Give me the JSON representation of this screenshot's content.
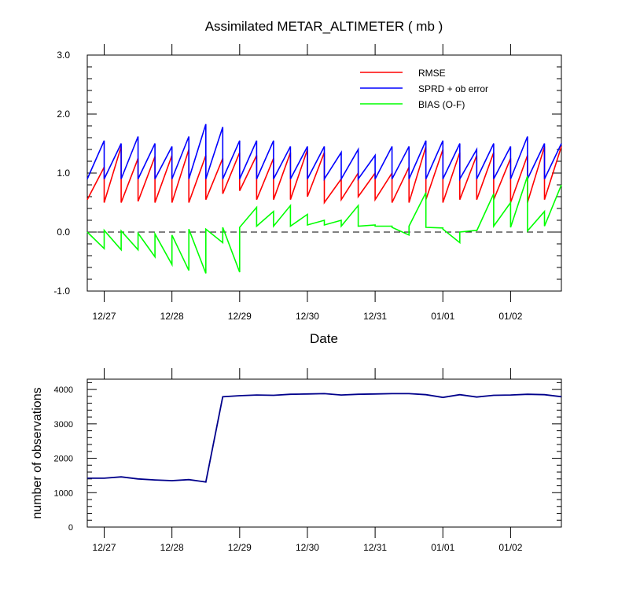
{
  "chart_data": [
    {
      "type": "line",
      "title": "Assimilated METAR_ALTIMETER ( mb )",
      "xlabel": "Date",
      "ylabel": "",
      "ylim": [
        -1.0,
        3.0
      ],
      "yticks": [
        "3.0",
        "2.0",
        "1.0",
        "0.0",
        "-1.0"
      ],
      "xticks": [
        "12/27",
        "12/28",
        "12/29",
        "12/30",
        "12/31",
        "01/01",
        "01/02"
      ],
      "legend_position": "top-right",
      "reference_line": {
        "y": 0.0,
        "style": "dashed"
      },
      "colors": {
        "RMSE": "#ff0000",
        "SPRD": "#0000ff",
        "BIAS": "#00ff00"
      },
      "series": [
        {
          "name": "RMSE",
          "color": "#ff0000",
          "segments": [
            [
              0.0,
              0.55,
              0.25,
              1.1
            ],
            [
              0.25,
              0.5,
              0.5,
              1.45
            ],
            [
              0.5,
              0.5,
              0.75,
              1.25
            ],
            [
              0.75,
              0.52,
              1.0,
              1.28
            ],
            [
              1.0,
              0.5,
              1.25,
              1.3
            ],
            [
              1.25,
              0.5,
              1.5,
              1.4
            ],
            [
              1.5,
              0.5,
              1.75,
              1.3
            ],
            [
              1.75,
              0.55,
              2.0,
              1.25
            ],
            [
              2.0,
              0.65,
              2.25,
              1.35
            ],
            [
              2.25,
              0.7,
              2.5,
              1.3
            ],
            [
              2.5,
              0.55,
              2.75,
              1.25
            ],
            [
              2.75,
              0.55,
              3.0,
              1.35
            ],
            [
              3.0,
              0.55,
              3.25,
              1.4
            ],
            [
              3.25,
              0.6,
              3.5,
              1.35
            ],
            [
              3.5,
              0.5,
              3.75,
              0.9
            ],
            [
              3.75,
              0.55,
              4.0,
              1.0
            ],
            [
              4.0,
              0.6,
              4.25,
              1.0
            ],
            [
              4.25,
              0.55,
              4.5,
              1.0
            ],
            [
              4.5,
              0.5,
              4.75,
              1.1
            ],
            [
              4.75,
              0.5,
              5.0,
              1.45
            ],
            [
              5.0,
              0.55,
              5.25,
              1.4
            ],
            [
              5.25,
              0.5,
              5.5,
              1.35
            ],
            [
              5.5,
              0.55,
              5.75,
              1.3
            ],
            [
              5.75,
              0.55,
              6.0,
              1.35
            ],
            [
              6.0,
              0.55,
              6.25,
              1.25
            ],
            [
              6.25,
              0.5,
              6.5,
              1.3
            ],
            [
              6.5,
              0.5,
              6.75,
              1.45
            ],
            [
              6.75,
              0.55,
              7.0,
              1.45
            ]
          ]
        },
        {
          "name": "SPRD + ob error",
          "color": "#0000ff",
          "segments": [
            [
              0.0,
              0.9,
              0.25,
              1.55
            ],
            [
              0.25,
              0.9,
              0.5,
              1.5
            ],
            [
              0.5,
              0.9,
              0.75,
              1.62
            ],
            [
              0.75,
              0.9,
              1.0,
              1.5
            ],
            [
              1.0,
              0.9,
              1.25,
              1.45
            ],
            [
              1.25,
              0.9,
              1.5,
              1.62
            ],
            [
              1.5,
              0.9,
              1.75,
              1.83
            ],
            [
              1.75,
              0.9,
              2.0,
              1.78
            ],
            [
              2.0,
              0.9,
              2.25,
              1.55
            ],
            [
              2.25,
              0.9,
              2.5,
              1.55
            ],
            [
              2.5,
              0.9,
              2.75,
              1.55
            ],
            [
              2.75,
              0.9,
              3.0,
              1.45
            ],
            [
              3.0,
              0.9,
              3.25,
              1.45
            ],
            [
              3.25,
              0.9,
              3.5,
              1.45
            ],
            [
              3.5,
              0.9,
              3.75,
              1.35
            ],
            [
              3.75,
              0.9,
              4.0,
              1.4
            ],
            [
              4.0,
              0.9,
              4.25,
              1.3
            ],
            [
              4.25,
              0.9,
              4.5,
              1.45
            ],
            [
              4.5,
              0.9,
              4.75,
              1.45
            ],
            [
              4.75,
              0.9,
              5.0,
              1.55
            ],
            [
              5.0,
              0.9,
              5.25,
              1.55
            ],
            [
              5.25,
              0.9,
              5.5,
              1.5
            ],
            [
              5.5,
              0.9,
              5.75,
              1.4
            ],
            [
              5.75,
              0.9,
              6.0,
              1.5
            ],
            [
              6.0,
              0.9,
              6.25,
              1.45
            ],
            [
              6.25,
              0.9,
              6.5,
              1.62
            ],
            [
              6.5,
              0.9,
              6.75,
              1.5
            ],
            [
              6.75,
              0.9,
              7.0,
              1.5
            ]
          ]
        },
        {
          "name": "BIAS (O-F)",
          "color": "#00ff00",
          "segments": [
            [
              0.0,
              0.0,
              0.25,
              -0.28
            ],
            [
              0.25,
              0.03,
              0.5,
              -0.3
            ],
            [
              0.5,
              0.02,
              0.75,
              -0.3
            ],
            [
              0.75,
              -0.02,
              1.0,
              -0.42
            ],
            [
              1.0,
              -0.03,
              1.25,
              -0.55
            ],
            [
              1.25,
              -0.05,
              1.5,
              -0.65
            ],
            [
              1.5,
              0.05,
              1.75,
              -0.7
            ],
            [
              1.75,
              0.05,
              2.0,
              -0.18
            ],
            [
              2.0,
              0.08,
              2.25,
              -0.68
            ],
            [
              2.25,
              0.08,
              2.5,
              0.42
            ],
            [
              2.5,
              0.1,
              2.75,
              0.35
            ],
            [
              2.75,
              0.1,
              3.0,
              0.45
            ],
            [
              3.0,
              0.1,
              3.25,
              0.3
            ],
            [
              3.25,
              0.12,
              3.5,
              0.2
            ],
            [
              3.5,
              0.12,
              3.75,
              0.2
            ],
            [
              3.75,
              0.1,
              4.0,
              0.45
            ],
            [
              4.0,
              0.1,
              4.25,
              0.12
            ],
            [
              4.25,
              0.1,
              4.5,
              0.1
            ],
            [
              4.5,
              0.08,
              4.75,
              -0.05
            ],
            [
              4.75,
              0.1,
              5.0,
              0.67
            ],
            [
              5.0,
              0.08,
              5.25,
              0.07
            ],
            [
              5.25,
              0.05,
              5.5,
              -0.18
            ],
            [
              5.5,
              0.0,
              5.75,
              0.03
            ],
            [
              5.75,
              0.02,
              6.0,
              0.65
            ],
            [
              6.0,
              0.1,
              6.25,
              0.5
            ],
            [
              6.25,
              0.08,
              6.5,
              0.95
            ],
            [
              6.5,
              0.02,
              6.75,
              0.35
            ],
            [
              6.75,
              0.1,
              7.0,
              0.8
            ]
          ]
        }
      ]
    },
    {
      "type": "line",
      "title": "",
      "xlabel": "",
      "ylabel": "number of observations",
      "ylim": [
        0,
        4300
      ],
      "yticks": [
        "4000",
        "3000",
        "2000",
        "1000",
        "0"
      ],
      "xticks": [
        "12/27",
        "12/28",
        "12/29",
        "12/30",
        "12/31",
        "01/01",
        "01/02"
      ],
      "series": [
        {
          "name": "",
          "color": "#00008b",
          "x": [
            0.0,
            0.25,
            0.5,
            0.75,
            1.0,
            1.25,
            1.5,
            1.75,
            2.0,
            2.25,
            2.5,
            2.75,
            3.0,
            3.25,
            3.5,
            3.75,
            4.0,
            4.25,
            4.5,
            4.75,
            5.0,
            5.25,
            5.5,
            5.75,
            6.0,
            6.25,
            6.5,
            6.75,
            7.0
          ],
          "values": [
            1420,
            1420,
            1460,
            1400,
            1370,
            1350,
            1380,
            1310,
            3790,
            3820,
            3840,
            3830,
            3860,
            3870,
            3880,
            3840,
            3860,
            3870,
            3880,
            3880,
            3850,
            3770,
            3850,
            3780,
            3830,
            3840,
            3860,
            3850,
            3790
          ]
        }
      ]
    }
  ]
}
